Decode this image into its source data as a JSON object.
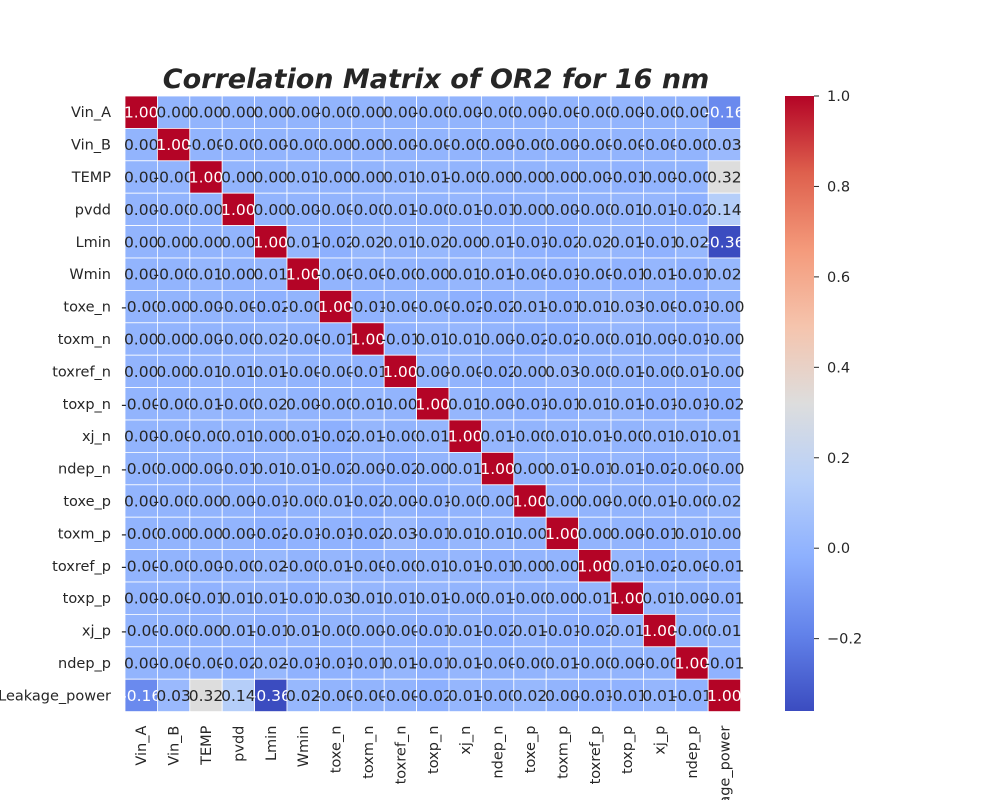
{
  "chart_data": {
    "type": "heatmap",
    "title": "Correlation Matrix of OR2 for 16 nm",
    "colormap": "coolwarm",
    "vmin": -0.36,
    "vmax": 1.0,
    "labels": [
      "Vin_A",
      "Vin_B",
      "TEMP",
      "pvdd",
      "Lmin",
      "Wmin",
      "toxe_n",
      "toxm_n",
      "toxref_n",
      "toxp_n",
      "xj_n",
      "ndep_n",
      "toxe_p",
      "toxm_p",
      "toxref_p",
      "toxp_p",
      "xj_p",
      "ndep_p",
      "Leakage_power"
    ],
    "x_tick_labels": [
      "Vin_A",
      "Vin_B",
      "TEMP",
      "pvdd",
      "Lmin",
      "Wmin",
      "toxe_n",
      "toxm_n",
      "toxref_n",
      "toxp_n",
      "xj_n",
      "ndep_n",
      "toxe_p",
      "toxm_p",
      "toxref_p",
      "toxp_p",
      "xj_p",
      "ndep_p",
      "age_power"
    ],
    "cell_text": [
      [
        "1.00",
        "0.00",
        "0.00",
        "0.00",
        "0.00",
        "0.00",
        "-0.00",
        "0.00",
        "0.00",
        "-0.00",
        "0.00",
        "-0.00",
        "0.00",
        "-0.00",
        "-0.00",
        "0.00",
        "-0.00",
        "0.00",
        "-0.16"
      ],
      [
        "0.00",
        "1.00",
        "-0.00",
        "-0.00",
        "0.00",
        "-0.00",
        "0.00",
        "0.00",
        "0.00",
        "-0.00",
        "-0.00",
        "0.00",
        "-0.00",
        "0.00",
        "-0.00",
        "-0.00",
        "-0.00",
        "-0.00",
        "0.03"
      ],
      [
        "0.00",
        "-0.00",
        "1.00",
        "0.00",
        "0.00",
        "0.01",
        "0.00",
        "0.00",
        "0.01",
        "0.01",
        "-0.00",
        "0.00",
        "0.00",
        "0.00",
        "0.00",
        "-0.01",
        "0.00",
        "-0.00",
        "0.32"
      ],
      [
        "0.00",
        "-0.00",
        "0.00",
        "1.00",
        "0.00",
        "0.00",
        "-0.00",
        "-0.00",
        "0.01",
        "-0.00",
        "0.01",
        "-0.01",
        "0.00",
        "0.00",
        "-0.00",
        "0.01",
        "0.01",
        "-0.02",
        "0.14"
      ],
      [
        "0.00",
        "0.00",
        "0.00",
        "0.00",
        "1.00",
        "0.01",
        "-0.02",
        "0.02",
        "0.01",
        "0.02",
        "0.00",
        "0.01",
        "-0.01",
        "-0.02",
        "0.02",
        "0.01",
        "-0.01",
        "0.02",
        "-0.36"
      ],
      [
        "0.00",
        "-0.00",
        "0.01",
        "0.00",
        "0.01",
        "1.00",
        "-0.00",
        "-0.00",
        "-0.00",
        "0.00",
        "0.01",
        "0.01",
        "-0.00",
        "-0.01",
        "-0.00",
        "-0.01",
        "0.01",
        "-0.01",
        "0.02"
      ],
      [
        "-0.00",
        "0.00",
        "0.00",
        "-0.00",
        "-0.02",
        "-0.00",
        "1.00",
        "-0.01",
        "-0.00",
        "-0.00",
        "-0.02",
        "-0.02",
        "0.01",
        "-0.01",
        "0.01",
        "0.03",
        "-0.00",
        "-0.01",
        "-0.00"
      ],
      [
        "0.00",
        "0.00",
        "0.00",
        "-0.00",
        "0.02",
        "-0.00",
        "-0.01",
        "1.00",
        "-0.01",
        "0.01",
        "0.01",
        "0.00",
        "-0.02",
        "-0.02",
        "-0.00",
        "0.01",
        "0.00",
        "-0.01",
        "-0.00"
      ],
      [
        "0.00",
        "0.00",
        "0.01",
        "0.01",
        "0.01",
        "-0.00",
        "-0.00",
        "-0.01",
        "1.00",
        "0.00",
        "-0.00",
        "-0.02",
        "0.00",
        "0.03",
        "-0.00",
        "0.01",
        "-0.00",
        "0.01",
        "-0.00"
      ],
      [
        "-0.00",
        "-0.00",
        "0.01",
        "-0.00",
        "0.02",
        "0.00",
        "-0.00",
        "0.01",
        "0.00",
        "1.00",
        "0.01",
        "0.00",
        "-0.01",
        "-0.01",
        "0.01",
        "0.01",
        "-0.01",
        "-0.01",
        "-0.02"
      ],
      [
        "0.00",
        "-0.00",
        "-0.00",
        "0.01",
        "0.00",
        "0.01",
        "-0.02",
        "0.01",
        "-0.00",
        "0.01",
        "1.00",
        "0.01",
        "-0.00",
        "0.01",
        "0.01",
        "-0.00",
        "0.01",
        "0.01",
        "0.01"
      ],
      [
        "-0.00",
        "0.00",
        "0.00",
        "-0.01",
        "0.01",
        "0.01",
        "-0.02",
        "0.00",
        "-0.02",
        "0.00",
        "0.01",
        "1.00",
        "0.00",
        "0.01",
        "-0.01",
        "0.01",
        "-0.02",
        "-0.00",
        "-0.00"
      ],
      [
        "0.00",
        "-0.00",
        "0.00",
        "0.00",
        "-0.01",
        "-0.00",
        "0.01",
        "-0.02",
        "0.00",
        "-0.01",
        "-0.00",
        "0.00",
        "1.00",
        "0.00",
        "0.00",
        "-0.00",
        "0.01",
        "-0.00",
        "0.02"
      ],
      [
        "-0.00",
        "0.00",
        "0.00",
        "0.00",
        "-0.02",
        "-0.01",
        "-0.01",
        "-0.02",
        "0.03",
        "-0.01",
        "0.01",
        "0.01",
        "0.00",
        "1.00",
        "0.00",
        "0.00",
        "-0.01",
        "0.01",
        "0.00"
      ],
      [
        "-0.00",
        "-0.00",
        "0.00",
        "-0.00",
        "0.02",
        "-0.00",
        "0.01",
        "-0.00",
        "-0.00",
        "0.01",
        "0.01",
        "-0.01",
        "0.00",
        "0.00",
        "1.00",
        "0.01",
        "-0.02",
        "-0.00",
        "-0.01"
      ],
      [
        "0.00",
        "-0.00",
        "-0.01",
        "0.01",
        "0.01",
        "-0.01",
        "0.03",
        "0.01",
        "0.01",
        "0.01",
        "-0.00",
        "0.01",
        "-0.00",
        "0.00",
        "0.01",
        "1.00",
        "0.01",
        "0.00",
        "-0.01"
      ],
      [
        "-0.00",
        "-0.00",
        "0.00",
        "0.01",
        "-0.01",
        "0.01",
        "-0.00",
        "0.00",
        "-0.00",
        "-0.01",
        "0.01",
        "-0.02",
        "0.01",
        "-0.01",
        "-0.02",
        "0.01",
        "1.00",
        "-0.00",
        "0.01"
      ],
      [
        "0.00",
        "-0.00",
        "-0.00",
        "-0.02",
        "0.02",
        "-0.01",
        "-0.01",
        "-0.01",
        "0.01",
        "-0.01",
        "0.01",
        "-0.00",
        "-0.00",
        "0.01",
        "-0.00",
        "0.00",
        "-0.00",
        "1.00",
        "-0.01"
      ],
      [
        "-0.16",
        "0.03",
        "0.32",
        "0.14",
        "-0.36",
        "0.02",
        "-0.00",
        "-0.00",
        "-0.00",
        "-0.02",
        "0.01",
        "-0.00",
        "0.02",
        "0.00",
        "-0.01",
        "-0.01",
        "0.01",
        "-0.01",
        "1.00"
      ]
    ],
    "colorbar_ticks": [
      {
        "value": 1.0,
        "label": "1.0"
      },
      {
        "value": 0.8,
        "label": "0.8"
      },
      {
        "value": 0.6,
        "label": "0.6"
      },
      {
        "value": 0.4,
        "label": "0.4"
      },
      {
        "value": 0.2,
        "label": "0.2"
      },
      {
        "value": 0.0,
        "label": "0.0"
      },
      {
        "value": -0.2,
        "label": "−0.2"
      }
    ]
  }
}
